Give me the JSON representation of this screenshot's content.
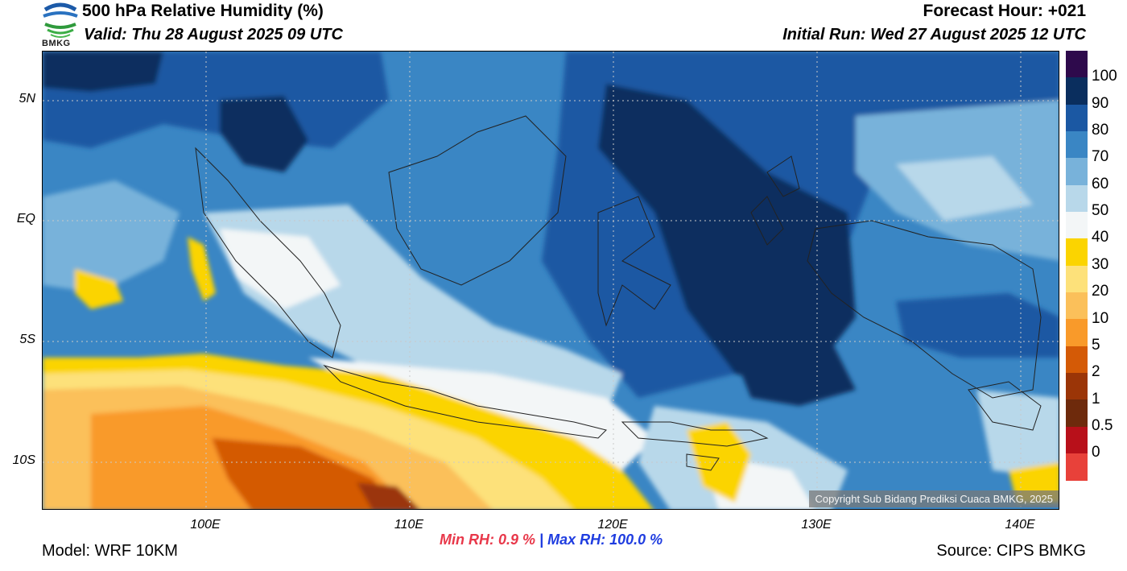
{
  "header": {
    "title": "500 hPa Relative Humidity (%)",
    "valid": "Valid: Thu 28 August 2025 09 UTC",
    "forecast_hour": "Forecast Hour: +021",
    "initial_run": "Initial Run: Wed 27 August 2025 12 UTC"
  },
  "logo": {
    "text": "BMKG"
  },
  "axes": {
    "lat_labels": [
      "5N",
      "EQ",
      "5S",
      "10S"
    ],
    "lon_labels": [
      "100E",
      "110E",
      "120E",
      "130E",
      "140E"
    ]
  },
  "colorbar": {
    "labels": [
      "100",
      "90",
      "80",
      "70",
      "60",
      "50",
      "40",
      "30",
      "20",
      "10",
      "5",
      "2",
      "1",
      "0.5",
      "0"
    ],
    "colors": [
      "#2e0a4c",
      "#0a2e5e",
      "#1b58a3",
      "#3a86c4",
      "#78b2da",
      "#b8d8ea",
      "#f3f6f7",
      "#fbd400",
      "#fde17a",
      "#fbc05a",
      "#f99a2a",
      "#d45a06",
      "#9b3507",
      "#6e2a0c",
      "#b8101a",
      "#e8413a"
    ]
  },
  "map": {
    "variable": "500 hPa Relative Humidity",
    "units": "%"
  },
  "footer": {
    "min_label": "Min RH:",
    "min_value": "0.9 %",
    "separator": "|",
    "max_label": "Max RH:",
    "max_value": "100.0 %",
    "model": "Model: WRF 10KM",
    "source": "Source: CIPS BMKG",
    "copyright": "Copyright Sub Bidang Prediksi Cuaca BMKG, 2025"
  }
}
